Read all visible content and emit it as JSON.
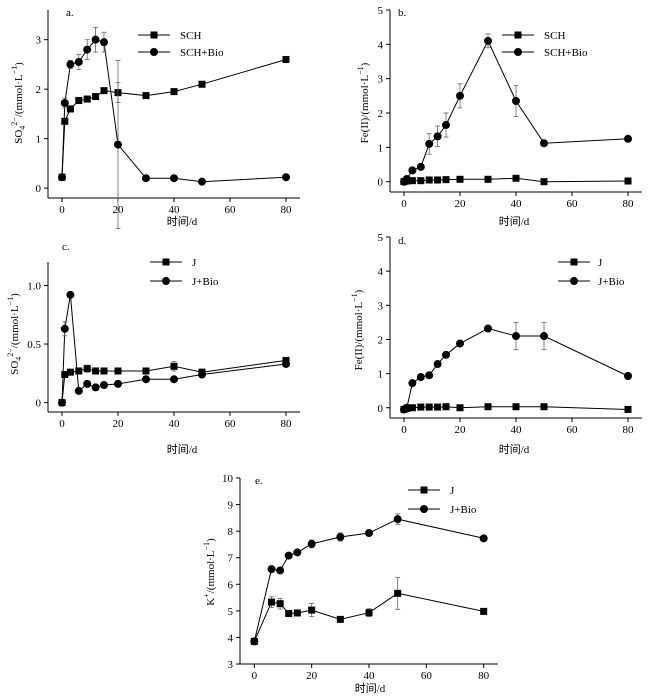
{
  "chart_data": [
    {
      "type": "line",
      "panel_label": "a.",
      "xlabel": "时间/d",
      "ylabel_main": "SO",
      "ylabel_sub": "4",
      "ylabel_sup": "2−",
      "ylabel_rest": "/(mmol·L",
      "ylabel_rest_sup": "−1",
      "ylabel_close": ")",
      "xlim": [
        -5,
        85
      ],
      "ylim": [
        -0.2,
        3.6
      ],
      "xticks": [
        "0",
        "20",
        "40",
        "60",
        "80"
      ],
      "xtick_values": [
        0,
        20,
        40,
        60,
        80
      ],
      "yticks": [
        "0",
        "1",
        "2",
        "3"
      ],
      "ytick_values": [
        0,
        1,
        2,
        3
      ],
      "series": [
        {
          "name": "SCH",
          "marker": "square",
          "x": [
            0,
            1,
            3,
            6,
            9,
            12,
            15,
            20,
            30,
            40,
            50,
            80
          ],
          "y": [
            0.22,
            1.35,
            1.6,
            1.77,
            1.8,
            1.85,
            1.97,
            1.93,
            1.87,
            1.95,
            2.1,
            2.6
          ],
          "err": [
            0,
            0.05,
            0.05,
            0.04,
            0.05,
            0.05,
            0.05,
            0.2,
            0.05,
            0.04,
            0.05,
            0.03
          ]
        },
        {
          "name": "SCH+Bio",
          "marker": "circle",
          "x": [
            0,
            1,
            3,
            6,
            9,
            12,
            15,
            20,
            30,
            40,
            50,
            80
          ],
          "y": [
            0.22,
            1.72,
            2.5,
            2.55,
            2.8,
            3.0,
            2.95,
            0.88,
            0.2,
            0.2,
            0.13,
            0.22
          ],
          "err": [
            0,
            0.1,
            0.08,
            0.15,
            0.2,
            0.25,
            0.2,
            1.7,
            0.03,
            0.03,
            0.03,
            0.03
          ]
        }
      ]
    },
    {
      "type": "line",
      "panel_label": "b.",
      "xlabel": "时间/d",
      "ylabel_main": "Fe(II)/(mmol·L",
      "ylabel_rest_sup": "−1",
      "ylabel_close": ")",
      "xlim": [
        -5,
        85
      ],
      "ylim": [
        -0.3,
        5
      ],
      "xticks": [
        "0",
        "20",
        "40",
        "60",
        "80"
      ],
      "xtick_values": [
        0,
        20,
        40,
        60,
        80
      ],
      "yticks": [
        "0",
        "1",
        "2",
        "3",
        "4",
        "5"
      ],
      "ytick_values": [
        0,
        1,
        2,
        3,
        4,
        5
      ],
      "series": [
        {
          "name": "SCH",
          "marker": "square",
          "x": [
            0,
            1,
            3,
            6,
            9,
            12,
            15,
            20,
            30,
            40,
            50,
            80
          ],
          "y": [
            0.0,
            0.02,
            0.03,
            0.03,
            0.05,
            0.05,
            0.06,
            0.07,
            0.07,
            0.1,
            0.0,
            0.02
          ],
          "err": [
            0,
            0,
            0,
            0,
            0,
            0,
            0,
            0.02,
            0.02,
            0.02,
            0,
            0
          ]
        },
        {
          "name": "SCH+Bio",
          "marker": "circle",
          "x": [
            0,
            1,
            3,
            6,
            9,
            12,
            15,
            20,
            30,
            40,
            50,
            80
          ],
          "y": [
            0.0,
            0.08,
            0.33,
            0.43,
            1.1,
            1.32,
            1.65,
            2.5,
            4.1,
            2.35,
            1.12,
            1.25
          ],
          "err": [
            0,
            0,
            0,
            0.05,
            0.3,
            0.3,
            0.35,
            0.35,
            0.2,
            0.45,
            0.05,
            0.03
          ]
        }
      ]
    },
    {
      "type": "line",
      "panel_label": "c.",
      "xlabel": "时间/d",
      "ylabel_main": "SO",
      "ylabel_sub": "4",
      "ylabel_sup": "2−",
      "ylabel_rest": "/(mmol·L",
      "ylabel_rest_sup": "−1",
      "ylabel_close": ")",
      "xlim": [
        -5,
        85
      ],
      "ylim": [
        -0.08,
        1.2
      ],
      "xticks": [
        "0",
        "20",
        "40",
        "60",
        "80"
      ],
      "xtick_values": [
        0,
        20,
        40,
        60,
        80
      ],
      "yticks": [
        "0",
        "0.5",
        "1.0"
      ],
      "ytick_values": [
        0,
        0.5,
        1.0
      ],
      "series": [
        {
          "name": "J",
          "marker": "square",
          "x": [
            0,
            1,
            3,
            6,
            9,
            12,
            15,
            20,
            30,
            40,
            50,
            80
          ],
          "y": [
            0.0,
            0.24,
            0.26,
            0.27,
            0.29,
            0.27,
            0.27,
            0.27,
            0.27,
            0.31,
            0.26,
            0.36
          ],
          "err": [
            0,
            0.02,
            0.02,
            0.01,
            0.03,
            0.02,
            0.01,
            0.01,
            0.02,
            0.04,
            0.02,
            0.02
          ]
        },
        {
          "name": "J+Bio",
          "marker": "circle",
          "x": [
            0,
            1,
            3,
            6,
            9,
            12,
            15,
            20,
            30,
            40,
            50,
            80
          ],
          "y": [
            0.0,
            0.63,
            0.92,
            0.1,
            0.16,
            0.13,
            0.15,
            0.16,
            0.2,
            0.2,
            0.24,
            0.33
          ],
          "err": [
            0,
            0.06,
            0.02,
            0.01,
            0.02,
            0.01,
            0.01,
            0.01,
            0.01,
            0.02,
            0.02,
            0.01
          ]
        }
      ]
    },
    {
      "type": "line",
      "panel_label": "d.",
      "xlabel": "时间/d",
      "ylabel_main": "Fe(II)/(mmol·L",
      "ylabel_rest_sup": "−1",
      "ylabel_close": ")",
      "xlim": [
        -5,
        85
      ],
      "ylim": [
        -0.3,
        5
      ],
      "xticks": [
        "0",
        "20",
        "40",
        "60",
        "80"
      ],
      "xtick_values": [
        0,
        20,
        40,
        60,
        80
      ],
      "yticks": [
        "0",
        "1",
        "2",
        "3",
        "4",
        "5"
      ],
      "ytick_values": [
        0,
        1,
        2,
        3,
        4,
        5
      ],
      "series": [
        {
          "name": "J",
          "marker": "square",
          "x": [
            0,
            1,
            3,
            6,
            9,
            12,
            15,
            20,
            30,
            40,
            50,
            80
          ],
          "y": [
            -0.05,
            -0.02,
            0.0,
            0.02,
            0.02,
            0.02,
            0.03,
            0.0,
            0.03,
            0.03,
            0.03,
            -0.05
          ],
          "err": [
            0,
            0,
            0,
            0,
            0,
            0,
            0,
            0,
            0,
            0,
            0,
            0
          ]
        },
        {
          "name": "J+Bio",
          "marker": "circle",
          "x": [
            0,
            1,
            3,
            6,
            9,
            12,
            15,
            20,
            30,
            40,
            50,
            80
          ],
          "y": [
            -0.05,
            0.0,
            0.72,
            0.9,
            0.95,
            1.28,
            1.55,
            1.88,
            2.32,
            2.1,
            2.1,
            0.93
          ],
          "err": [
            0,
            0,
            0.03,
            0.03,
            0.03,
            0.03,
            0.05,
            0.05,
            0.05,
            0.4,
            0.4,
            0.03
          ]
        }
      ]
    },
    {
      "type": "line",
      "panel_label": "e.",
      "xlabel": "时间/d",
      "ylabel_main": "K",
      "ylabel_sup": "+",
      "ylabel_rest": "/(mmol·L",
      "ylabel_rest_sup": "−1",
      "ylabel_close": ")",
      "xlim": [
        -5,
        85
      ],
      "ylim": [
        3,
        10
      ],
      "xticks": [
        "0",
        "20",
        "40",
        "60",
        "80"
      ],
      "xtick_values": [
        0,
        20,
        40,
        60,
        80
      ],
      "yticks": [
        "3",
        "4",
        "5",
        "6",
        "7",
        "8",
        "9",
        "10"
      ],
      "ytick_values": [
        3,
        4,
        5,
        6,
        7,
        8,
        9,
        10
      ],
      "series": [
        {
          "name": "J",
          "marker": "square",
          "x": [
            0,
            6,
            9,
            12,
            15,
            20,
            30,
            40,
            50,
            80
          ],
          "y": [
            3.85,
            5.33,
            5.27,
            4.9,
            4.92,
            5.03,
            4.68,
            4.93,
            5.66,
            4.98
          ],
          "err": [
            0,
            0.2,
            0.2,
            0.05,
            0.05,
            0.25,
            0.05,
            0.15,
            0.6,
            0.05
          ]
        },
        {
          "name": "J+Bio",
          "marker": "circle",
          "x": [
            0,
            6,
            9,
            12,
            15,
            20,
            30,
            40,
            50,
            80
          ],
          "y": [
            3.85,
            6.57,
            6.52,
            7.08,
            7.2,
            7.52,
            7.78,
            7.93,
            8.45,
            7.73
          ],
          "err": [
            0,
            0.1,
            0.1,
            0.1,
            0.1,
            0.15,
            0.15,
            0.05,
            0.2,
            0.05
          ]
        }
      ]
    }
  ]
}
